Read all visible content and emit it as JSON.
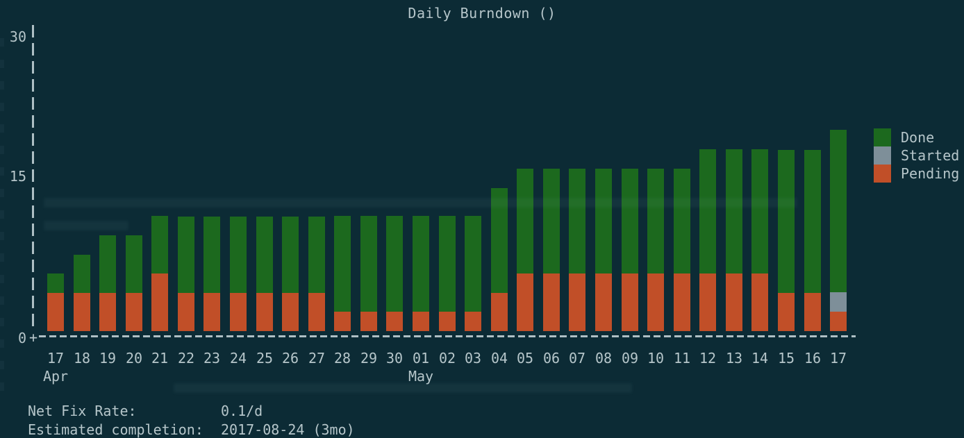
{
  "app": {
    "title": "Daily Burndown ()"
  },
  "colors": {
    "background": "#0c2b35",
    "text": "#b6c6ca",
    "axis": "#aebfc4",
    "done": "#1c691e",
    "started": "#7e8f99",
    "pending": "#c14f28"
  },
  "chart_data": {
    "type": "bar",
    "stacked": true,
    "title": "Daily Burndown ()",
    "xlabel": "",
    "ylabel": "",
    "ylim": [
      0,
      30
    ],
    "yticks": [
      30,
      15,
      0
    ],
    "origin_marker": "+",
    "grid": false,
    "legend_position": "right",
    "categories": [
      "17",
      "18",
      "19",
      "20",
      "21",
      "22",
      "23",
      "24",
      "25",
      "26",
      "27",
      "28",
      "29",
      "30",
      "01",
      "02",
      "03",
      "04",
      "05",
      "06",
      "07",
      "08",
      "09",
      "10",
      "11",
      "12",
      "13",
      "14",
      "15",
      "16",
      "17"
    ],
    "month_labels": [
      {
        "label": "Apr",
        "category_index": 0
      },
      {
        "label": "May",
        "category_index": 14
      }
    ],
    "series": [
      {
        "name": "Pending",
        "color": "#c14f28",
        "values": [
          4,
          4,
          4,
          4,
          6,
          4,
          4,
          4,
          4,
          4,
          4,
          2,
          2,
          2,
          2,
          2,
          2,
          4,
          6,
          6,
          6,
          6,
          6,
          6,
          6,
          6,
          6,
          6,
          4,
          4,
          2
        ]
      },
      {
        "name": "Started",
        "color": "#7e8f99",
        "values": [
          0,
          0,
          0,
          0,
          0,
          0,
          0,
          0,
          0,
          0,
          0,
          0,
          0,
          0,
          0,
          0,
          0,
          0,
          0,
          0,
          0,
          0,
          0,
          0,
          0,
          0,
          0,
          0,
          0,
          0,
          2
        ]
      },
      {
        "name": "Done",
        "color": "#1c691e",
        "values": [
          2,
          4,
          6,
          6,
          6,
          8,
          8,
          8,
          8,
          8,
          8,
          10,
          10,
          10,
          10,
          10,
          10,
          11,
          11,
          11,
          11,
          11,
          11,
          11,
          11,
          13,
          13,
          13,
          15,
          15,
          17
        ]
      }
    ],
    "totals": [
      6,
      8,
      10,
      10,
      12,
      12,
      12,
      12,
      12,
      12,
      12,
      12,
      12,
      12,
      12,
      12,
      12,
      15,
      17,
      17,
      17,
      17,
      17,
      17,
      17,
      19,
      19,
      19,
      19,
      19,
      21
    ]
  },
  "legend": [
    {
      "label": "Done",
      "color": "#1c691e"
    },
    {
      "label": "Started",
      "color": "#7e8f99"
    },
    {
      "label": "Pending",
      "color": "#c14f28"
    }
  ],
  "footer": {
    "rows": [
      {
        "label": "Net Fix Rate:",
        "value": "0.1/d"
      },
      {
        "label": "Estimated completion:",
        "value": "2017-08-24 (3mo)"
      }
    ]
  }
}
